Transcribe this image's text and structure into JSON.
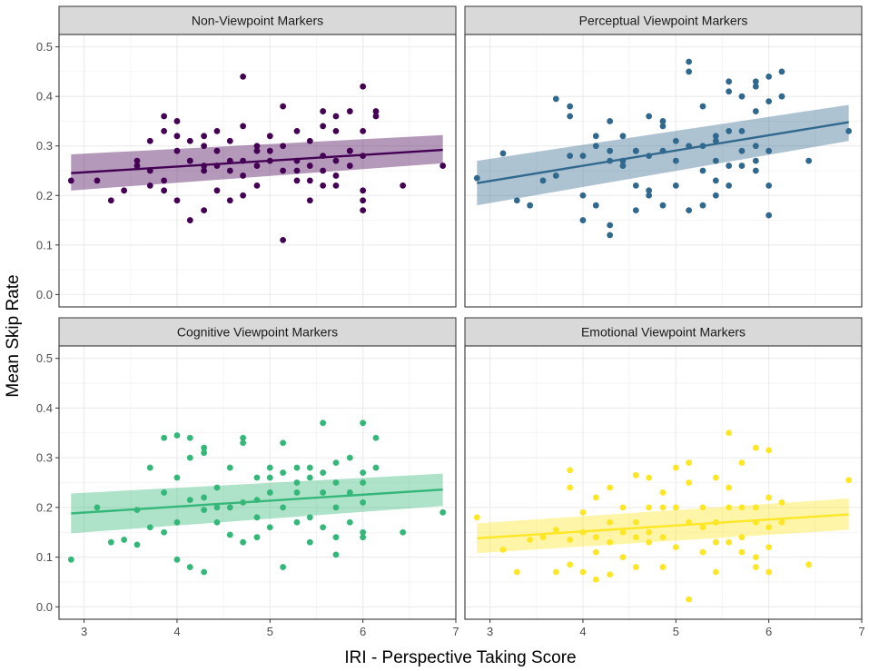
{
  "figure": {
    "ylabel": "Mean Skip Rate",
    "xlabel": "IRI - Perspective Taking Score"
  },
  "chart_data": [
    {
      "type": "scatter",
      "title": "Non-Viewpoint Markers",
      "color": "#440154",
      "xlabel": "IRI - Perspective Taking Score",
      "ylabel": "Mean Skip Rate",
      "xlim": [
        2.73,
        7.0
      ],
      "ylim": [
        -0.025,
        0.525
      ],
      "xticks": [
        3,
        4,
        5,
        6,
        7
      ],
      "yticks": [
        0.0,
        0.1,
        0.2,
        0.3,
        0.4,
        0.5
      ],
      "ytick_labels": [
        "0.0",
        "0.1",
        "0.2",
        "0.3",
        "0.4",
        "0.5"
      ],
      "grid": true,
      "fit": {
        "x": [
          2.86,
          6.86
        ],
        "y": [
          0.245,
          0.292
        ],
        "ci_low": [
          0.21,
          0.265
        ],
        "ci_high": [
          0.283,
          0.322
        ]
      },
      "points": [
        [
          2.86,
          0.23
        ],
        [
          3.14,
          0.23
        ],
        [
          3.29,
          0.19
        ],
        [
          3.43,
          0.21
        ],
        [
          3.57,
          0.27
        ],
        [
          3.57,
          0.26
        ],
        [
          3.71,
          0.25
        ],
        [
          3.71,
          0.22
        ],
        [
          3.71,
          0.31
        ],
        [
          3.86,
          0.33
        ],
        [
          3.86,
          0.23
        ],
        [
          3.86,
          0.36
        ],
        [
          3.86,
          0.21
        ],
        [
          4.0,
          0.35
        ],
        [
          4.0,
          0.32
        ],
        [
          4.0,
          0.29
        ],
        [
          4.0,
          0.19
        ],
        [
          4.14,
          0.31
        ],
        [
          4.14,
          0.27
        ],
        [
          4.14,
          0.27
        ],
        [
          4.14,
          0.15
        ],
        [
          4.29,
          0.32
        ],
        [
          4.29,
          0.3
        ],
        [
          4.29,
          0.25
        ],
        [
          4.29,
          0.26
        ],
        [
          4.29,
          0.17
        ],
        [
          4.43,
          0.33
        ],
        [
          4.43,
          0.29
        ],
        [
          4.43,
          0.26
        ],
        [
          4.43,
          0.21
        ],
        [
          4.57,
          0.27
        ],
        [
          4.57,
          0.25
        ],
        [
          4.57,
          0.19
        ],
        [
          4.57,
          0.31
        ],
        [
          4.71,
          0.44
        ],
        [
          4.71,
          0.34
        ],
        [
          4.71,
          0.24
        ],
        [
          4.71,
          0.2
        ],
        [
          4.71,
          0.27
        ],
        [
          4.86,
          0.3
        ],
        [
          4.86,
          0.26
        ],
        [
          4.86,
          0.22
        ],
        [
          4.86,
          0.29
        ],
        [
          5.0,
          0.29
        ],
        [
          5.0,
          0.27
        ],
        [
          5.0,
          0.32
        ],
        [
          5.14,
          0.38
        ],
        [
          5.14,
          0.3
        ],
        [
          5.14,
          0.25
        ],
        [
          5.14,
          0.11
        ],
        [
          5.29,
          0.33
        ],
        [
          5.29,
          0.25
        ],
        [
          5.29,
          0.23
        ],
        [
          5.29,
          0.27
        ],
        [
          5.43,
          0.31
        ],
        [
          5.43,
          0.26
        ],
        [
          5.43,
          0.23
        ],
        [
          5.43,
          0.19
        ],
        [
          5.57,
          0.37
        ],
        [
          5.57,
          0.34
        ],
        [
          5.57,
          0.28
        ],
        [
          5.57,
          0.25
        ],
        [
          5.57,
          0.22
        ],
        [
          5.71,
          0.36
        ],
        [
          5.71,
          0.33
        ],
        [
          5.71,
          0.27
        ],
        [
          5.71,
          0.22
        ],
        [
          5.71,
          0.24
        ],
        [
          5.86,
          0.37
        ],
        [
          5.86,
          0.29
        ],
        [
          5.86,
          0.26
        ],
        [
          5.86,
          0.29
        ],
        [
          6.0,
          0.42
        ],
        [
          6.0,
          0.33
        ],
        [
          6.0,
          0.28
        ],
        [
          6.0,
          0.21
        ],
        [
          6.0,
          0.17
        ],
        [
          6.0,
          0.19
        ],
        [
          6.14,
          0.37
        ],
        [
          6.14,
          0.36
        ],
        [
          6.43,
          0.22
        ],
        [
          6.86,
          0.26
        ]
      ]
    },
    {
      "type": "scatter",
      "title": "Perceptual Viewpoint Markers",
      "color": "#31688e",
      "xlabel": "IRI - Perspective Taking Score",
      "ylabel": "Mean Skip Rate",
      "xlim": [
        2.73,
        7.0
      ],
      "ylim": [
        -0.025,
        0.525
      ],
      "xticks": [
        3,
        4,
        5,
        6,
        7
      ],
      "yticks": [
        0.0,
        0.1,
        0.2,
        0.3,
        0.4,
        0.5
      ],
      "ytick_labels": [
        "0.0",
        "0.1",
        "0.2",
        "0.3",
        "0.4",
        "0.5"
      ],
      "grid": true,
      "fit": {
        "x": [
          2.86,
          6.86
        ],
        "y": [
          0.225,
          0.348
        ],
        "ci_low": [
          0.18,
          0.31
        ],
        "ci_high": [
          0.27,
          0.383
        ]
      },
      "points": [
        [
          2.86,
          0.235
        ],
        [
          3.14,
          0.285
        ],
        [
          3.29,
          0.19
        ],
        [
          3.43,
          0.18
        ],
        [
          3.57,
          0.23
        ],
        [
          3.71,
          0.395
        ],
        [
          3.71,
          0.24
        ],
        [
          3.86,
          0.38
        ],
        [
          3.86,
          0.36
        ],
        [
          3.86,
          0.28
        ],
        [
          4.0,
          0.28
        ],
        [
          4.0,
          0.2
        ],
        [
          4.0,
          0.15
        ],
        [
          4.14,
          0.32
        ],
        [
          4.14,
          0.3
        ],
        [
          4.14,
          0.18
        ],
        [
          4.29,
          0.35
        ],
        [
          4.29,
          0.29
        ],
        [
          4.29,
          0.27
        ],
        [
          4.29,
          0.14
        ],
        [
          4.29,
          0.12
        ],
        [
          4.43,
          0.32
        ],
        [
          4.43,
          0.27
        ],
        [
          4.43,
          0.26
        ],
        [
          4.57,
          0.29
        ],
        [
          4.57,
          0.29
        ],
        [
          4.57,
          0.22
        ],
        [
          4.57,
          0.17
        ],
        [
          4.71,
          0.36
        ],
        [
          4.71,
          0.28
        ],
        [
          4.71,
          0.21
        ],
        [
          4.71,
          0.2
        ],
        [
          4.86,
          0.35
        ],
        [
          4.86,
          0.29
        ],
        [
          4.86,
          0.18
        ],
        [
          4.86,
          0.34
        ],
        [
          5.0,
          0.31
        ],
        [
          5.0,
          0.27
        ],
        [
          5.0,
          0.22
        ],
        [
          5.14,
          0.47
        ],
        [
          5.14,
          0.45
        ],
        [
          5.14,
          0.3
        ],
        [
          5.14,
          0.17
        ],
        [
          5.29,
          0.38
        ],
        [
          5.29,
          0.3
        ],
        [
          5.29,
          0.25
        ],
        [
          5.29,
          0.18
        ],
        [
          5.43,
          0.32
        ],
        [
          5.43,
          0.31
        ],
        [
          5.43,
          0.27
        ],
        [
          5.43,
          0.23
        ],
        [
          5.43,
          0.2
        ],
        [
          5.57,
          0.43
        ],
        [
          5.57,
          0.41
        ],
        [
          5.57,
          0.33
        ],
        [
          5.57,
          0.26
        ],
        [
          5.57,
          0.22
        ],
        [
          5.71,
          0.4
        ],
        [
          5.71,
          0.33
        ],
        [
          5.71,
          0.29
        ],
        [
          5.71,
          0.26
        ],
        [
          5.86,
          0.43
        ],
        [
          5.86,
          0.42
        ],
        [
          5.86,
          0.37
        ],
        [
          5.86,
          0.3
        ],
        [
          5.86,
          0.27
        ],
        [
          5.86,
          0.25
        ],
        [
          6.0,
          0.44
        ],
        [
          6.0,
          0.39
        ],
        [
          6.0,
          0.29
        ],
        [
          6.0,
          0.22
        ],
        [
          6.0,
          0.16
        ],
        [
          6.14,
          0.45
        ],
        [
          6.14,
          0.4
        ],
        [
          6.43,
          0.27
        ],
        [
          6.86,
          0.33
        ]
      ]
    },
    {
      "type": "scatter",
      "title": "Cognitive Viewpoint Markers",
      "color": "#35b779",
      "xlabel": "IRI - Perspective Taking Score",
      "ylabel": "Mean Skip Rate",
      "xlim": [
        2.73,
        7.0
      ],
      "ylim": [
        -0.025,
        0.525
      ],
      "xticks": [
        3,
        4,
        5,
        6,
        7
      ],
      "yticks": [
        0.0,
        0.1,
        0.2,
        0.3,
        0.4,
        0.5
      ],
      "ytick_labels": [
        "0.0",
        "0.1",
        "0.2",
        "0.3",
        "0.4",
        "0.5"
      ],
      "grid": true,
      "fit": {
        "x": [
          2.86,
          6.86
        ],
        "y": [
          0.188,
          0.236
        ],
        "ci_low": [
          0.148,
          0.203
        ],
        "ci_high": [
          0.228,
          0.268
        ]
      },
      "points": [
        [
          2.86,
          0.095
        ],
        [
          3.14,
          0.2
        ],
        [
          3.29,
          0.13
        ],
        [
          3.43,
          0.135
        ],
        [
          3.57,
          0.195
        ],
        [
          3.57,
          0.125
        ],
        [
          3.71,
          0.28
        ],
        [
          3.71,
          0.16
        ],
        [
          3.86,
          0.34
        ],
        [
          3.86,
          0.23
        ],
        [
          3.86,
          0.15
        ],
        [
          4.0,
          0.345
        ],
        [
          4.0,
          0.26
        ],
        [
          4.0,
          0.17
        ],
        [
          4.0,
          0.095
        ],
        [
          4.14,
          0.34
        ],
        [
          4.14,
          0.3
        ],
        [
          4.14,
          0.215
        ],
        [
          4.14,
          0.08
        ],
        [
          4.29,
          0.32
        ],
        [
          4.29,
          0.31
        ],
        [
          4.29,
          0.22
        ],
        [
          4.29,
          0.195
        ],
        [
          4.29,
          0.07
        ],
        [
          4.43,
          0.24
        ],
        [
          4.43,
          0.17
        ],
        [
          4.43,
          0.2
        ],
        [
          4.57,
          0.28
        ],
        [
          4.57,
          0.2
        ],
        [
          4.57,
          0.145
        ],
        [
          4.71,
          0.34
        ],
        [
          4.71,
          0.33
        ],
        [
          4.71,
          0.21
        ],
        [
          4.71,
          0.13
        ],
        [
          4.86,
          0.26
        ],
        [
          4.86,
          0.215
        ],
        [
          4.86,
          0.18
        ],
        [
          4.86,
          0.14
        ],
        [
          5.0,
          0.28
        ],
        [
          5.0,
          0.26
        ],
        [
          5.0,
          0.23
        ],
        [
          5.0,
          0.16
        ],
        [
          5.14,
          0.33
        ],
        [
          5.14,
          0.27
        ],
        [
          5.14,
          0.2
        ],
        [
          5.14,
          0.08
        ],
        [
          5.29,
          0.28
        ],
        [
          5.29,
          0.25
        ],
        [
          5.29,
          0.23
        ],
        [
          5.29,
          0.17
        ],
        [
          5.43,
          0.28
        ],
        [
          5.43,
          0.26
        ],
        [
          5.43,
          0.18
        ],
        [
          5.43,
          0.13
        ],
        [
          5.57,
          0.37
        ],
        [
          5.57,
          0.27
        ],
        [
          5.57,
          0.23
        ],
        [
          5.57,
          0.16
        ],
        [
          5.71,
          0.29
        ],
        [
          5.71,
          0.25
        ],
        [
          5.71,
          0.2
        ],
        [
          5.71,
          0.14
        ],
        [
          5.71,
          0.105
        ],
        [
          5.86,
          0.3
        ],
        [
          5.86,
          0.23
        ],
        [
          5.86,
          0.17
        ],
        [
          6.0,
          0.37
        ],
        [
          6.0,
          0.27
        ],
        [
          6.0,
          0.25
        ],
        [
          6.0,
          0.21
        ],
        [
          6.0,
          0.14
        ],
        [
          6.0,
          0.15
        ],
        [
          6.14,
          0.34
        ],
        [
          6.14,
          0.28
        ],
        [
          6.43,
          0.15
        ],
        [
          6.86,
          0.19
        ]
      ]
    },
    {
      "type": "scatter",
      "title": "Emotional Viewpoint Markers",
      "color": "#fde725",
      "xlabel": "IRI - Perspective Taking Score",
      "ylabel": "Mean Skip Rate",
      "xlim": [
        2.73,
        7.0
      ],
      "ylim": [
        -0.025,
        0.525
      ],
      "xticks": [
        3,
        4,
        5,
        6,
        7
      ],
      "yticks": [
        0.0,
        0.1,
        0.2,
        0.3,
        0.4,
        0.5
      ],
      "ytick_labels": [
        "0.0",
        "0.1",
        "0.2",
        "0.3",
        "0.4",
        "0.5"
      ],
      "grid": true,
      "fit": {
        "x": [
          2.86,
          6.86
        ],
        "y": [
          0.138,
          0.186
        ],
        "ci_low": [
          0.108,
          0.155
        ],
        "ci_high": [
          0.168,
          0.218
        ]
      },
      "points": [
        [
          2.86,
          0.18
        ],
        [
          3.14,
          0.115
        ],
        [
          3.29,
          0.07
        ],
        [
          3.43,
          0.135
        ],
        [
          3.57,
          0.14
        ],
        [
          3.71,
          0.155
        ],
        [
          3.71,
          0.07
        ],
        [
          3.86,
          0.275
        ],
        [
          3.86,
          0.24
        ],
        [
          3.86,
          0.135
        ],
        [
          3.86,
          0.085
        ],
        [
          4.0,
          0.19
        ],
        [
          4.0,
          0.15
        ],
        [
          4.0,
          0.07
        ],
        [
          4.14,
          0.22
        ],
        [
          4.14,
          0.14
        ],
        [
          4.14,
          0.11
        ],
        [
          4.14,
          0.055
        ],
        [
          4.29,
          0.24
        ],
        [
          4.29,
          0.17
        ],
        [
          4.29,
          0.13
        ],
        [
          4.29,
          0.065
        ],
        [
          4.43,
          0.2
        ],
        [
          4.43,
          0.15
        ],
        [
          4.43,
          0.1
        ],
        [
          4.57,
          0.265
        ],
        [
          4.57,
          0.17
        ],
        [
          4.57,
          0.14
        ],
        [
          4.57,
          0.08
        ],
        [
          4.71,
          0.26
        ],
        [
          4.71,
          0.2
        ],
        [
          4.71,
          0.15
        ],
        [
          4.71,
          0.13
        ],
        [
          4.86,
          0.23
        ],
        [
          4.86,
          0.2
        ],
        [
          4.86,
          0.14
        ],
        [
          4.86,
          0.08
        ],
        [
          5.0,
          0.28
        ],
        [
          5.0,
          0.2
        ],
        [
          5.0,
          0.12
        ],
        [
          5.14,
          0.29
        ],
        [
          5.14,
          0.25
        ],
        [
          5.14,
          0.17
        ],
        [
          5.14,
          0.015
        ],
        [
          5.29,
          0.2
        ],
        [
          5.29,
          0.16
        ],
        [
          5.29,
          0.11
        ],
        [
          5.43,
          0.26
        ],
        [
          5.43,
          0.17
        ],
        [
          5.43,
          0.13
        ],
        [
          5.43,
          0.07
        ],
        [
          5.57,
          0.35
        ],
        [
          5.57,
          0.24
        ],
        [
          5.57,
          0.2
        ],
        [
          5.57,
          0.13
        ],
        [
          5.71,
          0.29
        ],
        [
          5.71,
          0.2
        ],
        [
          5.71,
          0.14
        ],
        [
          5.71,
          0.11
        ],
        [
          5.86,
          0.32
        ],
        [
          5.86,
          0.2
        ],
        [
          5.86,
          0.17
        ],
        [
          5.86,
          0.1
        ],
        [
          5.86,
          0.08
        ],
        [
          6.0,
          0.315
        ],
        [
          6.0,
          0.22
        ],
        [
          6.0,
          0.16
        ],
        [
          6.0,
          0.12
        ],
        [
          6.0,
          0.07
        ],
        [
          6.14,
          0.21
        ],
        [
          6.14,
          0.17
        ],
        [
          6.43,
          0.085
        ],
        [
          6.86,
          0.255
        ]
      ]
    }
  ]
}
